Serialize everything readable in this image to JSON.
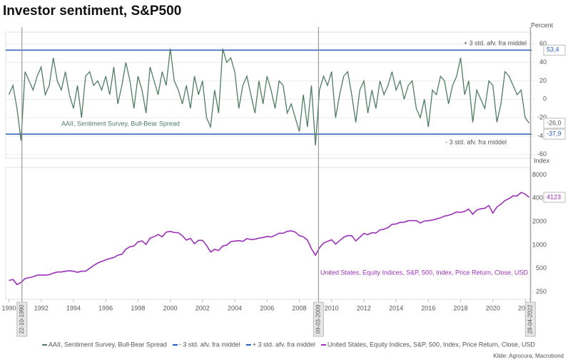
{
  "title": "Investor sentiment, S&P500",
  "source": "Kilde: Agrocura, Macrobond",
  "events": [
    {
      "label": "22-10-1990"
    },
    {
      "label": "09-03-2009"
    },
    {
      "label": "28-04-2022"
    }
  ],
  "chart_data": [
    {
      "type": "line",
      "ylabel": "Percent",
      "ylim": [
        -64,
        73
      ],
      "yticks": [
        -60,
        -40,
        -20,
        0,
        20,
        40,
        60
      ],
      "grid": true,
      "x": [
        1990,
        1990.25,
        1990.5,
        1990.75,
        1991,
        1991.25,
        1991.5,
        1991.75,
        1992,
        1992.25,
        1992.5,
        1992.75,
        1993,
        1993.25,
        1993.5,
        1993.75,
        1994,
        1994.25,
        1994.5,
        1994.75,
        1995,
        1995.25,
        1995.5,
        1995.75,
        1996,
        1996.25,
        1996.5,
        1996.75,
        1997,
        1997.25,
        1997.5,
        1997.75,
        1998,
        1998.25,
        1998.5,
        1998.75,
        1999,
        1999.25,
        1999.5,
        1999.75,
        2000,
        2000.25,
        2000.5,
        2000.75,
        2001,
        2001.25,
        2001.5,
        2001.75,
        2002,
        2002.25,
        2002.5,
        2002.75,
        2003,
        2003.25,
        2003.5,
        2003.75,
        2004,
        2004.25,
        2004.5,
        2004.75,
        2005,
        2005.25,
        2005.5,
        2005.75,
        2006,
        2006.25,
        2006.5,
        2006.75,
        2007,
        2007.25,
        2007.5,
        2007.75,
        2008,
        2008.25,
        2008.5,
        2008.75,
        2009,
        2009.25,
        2009.5,
        2009.75,
        2010,
        2010.25,
        2010.5,
        2010.75,
        2011,
        2011.25,
        2011.5,
        2011.75,
        2012,
        2012.25,
        2012.5,
        2012.75,
        2013,
        2013.25,
        2013.5,
        2013.75,
        2014,
        2014.25,
        2014.5,
        2014.75,
        2015,
        2015.25,
        2015.5,
        2015.75,
        2016,
        2016.25,
        2016.5,
        2016.75,
        2017,
        2017.25,
        2017.5,
        2017.75,
        2018,
        2018.25,
        2018.5,
        2018.75,
        2019,
        2019.25,
        2019.5,
        2019.75,
        2020,
        2020.25,
        2020.5,
        2020.75,
        2021,
        2021.25,
        2021.5,
        2021.75,
        2022,
        2022.25
      ],
      "series": [
        {
          "name": "AAII, Sentiment Survey, Bull-Bear Spread",
          "color": "#4e7d63",
          "last_value_label": "-26,0",
          "values": [
            5,
            15,
            -10,
            -45,
            30,
            20,
            10,
            25,
            35,
            5,
            15,
            45,
            20,
            10,
            30,
            5,
            -10,
            15,
            -20,
            25,
            30,
            15,
            20,
            10,
            25,
            5,
            35,
            -5,
            15,
            40,
            20,
            -10,
            25,
            10,
            -15,
            35,
            20,
            5,
            30,
            15,
            55,
            20,
            10,
            -5,
            15,
            -10,
            25,
            5,
            20,
            -20,
            -30,
            10,
            -15,
            55,
            40,
            45,
            30,
            -10,
            15,
            25,
            5,
            -15,
            20,
            -5,
            25,
            10,
            -10,
            20,
            15,
            -15,
            -5,
            -20,
            -35,
            5,
            -30,
            15,
            -50,
            10,
            25,
            15,
            30,
            -20,
            5,
            25,
            30,
            5,
            -25,
            10,
            20,
            -15,
            10,
            -10,
            20,
            5,
            15,
            30,
            10,
            20,
            0,
            15,
            20,
            -10,
            -20,
            0,
            -30,
            10,
            5,
            25,
            20,
            -5,
            15,
            25,
            45,
            5,
            20,
            -25,
            10,
            0,
            -10,
            20,
            15,
            -25,
            -5,
            30,
            25,
            15,
            5,
            10,
            -20,
            -26
          ]
        }
      ],
      "hlines": [
        {
          "name": "- 3 std. afv. fra middel",
          "value": -37.9,
          "value_label": "-37,9",
          "color": "#2a5bb8"
        },
        {
          "name": "+ 3 std. afv. fra middel",
          "value": 53.4,
          "value_label": "53,4",
          "color": "#2a5bb8"
        }
      ]
    },
    {
      "type": "line",
      "ylabel": "Index",
      "log_scale": true,
      "ylim": [
        200,
        10000
      ],
      "yticks": [
        250,
        500,
        1000,
        2000,
        4000,
        8000
      ],
      "xlim": [
        1989.8,
        2022.4
      ],
      "xticks": [
        1990,
        1992,
        1994,
        1996,
        1998,
        2000,
        2002,
        2004,
        2006,
        2008,
        2010,
        2012,
        2014,
        2016,
        2018,
        2020,
        2022
      ],
      "x": [
        1990,
        1990.25,
        1990.5,
        1990.75,
        1991,
        1991.25,
        1991.5,
        1991.75,
        1992,
        1992.25,
        1992.5,
        1992.75,
        1993,
        1993.25,
        1993.5,
        1993.75,
        1994,
        1994.25,
        1994.5,
        1994.75,
        1995,
        1995.25,
        1995.5,
        1995.75,
        1996,
        1996.25,
        1996.5,
        1996.75,
        1997,
        1997.25,
        1997.5,
        1997.75,
        1998,
        1998.25,
        1998.5,
        1998.75,
        1999,
        1999.25,
        1999.5,
        1999.75,
        2000,
        2000.25,
        2000.5,
        2000.75,
        2001,
        2001.25,
        2001.5,
        2001.75,
        2002,
        2002.25,
        2002.5,
        2002.75,
        2003,
        2003.25,
        2003.5,
        2003.75,
        2004,
        2004.25,
        2004.5,
        2004.75,
        2005,
        2005.25,
        2005.5,
        2005.75,
        2006,
        2006.25,
        2006.5,
        2006.75,
        2007,
        2007.25,
        2007.5,
        2007.75,
        2008,
        2008.25,
        2008.5,
        2008.75,
        2009,
        2009.25,
        2009.5,
        2009.75,
        2010,
        2010.25,
        2010.5,
        2010.75,
        2011,
        2011.25,
        2011.5,
        2011.75,
        2012,
        2012.25,
        2012.5,
        2012.75,
        2013,
        2013.25,
        2013.5,
        2013.75,
        2014,
        2014.25,
        2014.5,
        2014.75,
        2015,
        2015.25,
        2015.5,
        2015.75,
        2016,
        2016.25,
        2016.5,
        2016.75,
        2017,
        2017.25,
        2017.5,
        2017.75,
        2018,
        2018.25,
        2018.5,
        2018.75,
        2019,
        2019.25,
        2019.5,
        2019.75,
        2020,
        2020.25,
        2020.5,
        2020.75,
        2021,
        2021.25,
        2021.5,
        2021.75,
        2022,
        2022.25
      ],
      "series": [
        {
          "name": "United States, Equity Indices, S&P, 500, Index, Price Return, Close, USD",
          "color": "#9b30b8",
          "last_value_label": "4123",
          "values": [
            350,
            360,
            310,
            330,
            370,
            380,
            390,
            410,
            410,
            410,
            415,
            435,
            450,
            450,
            460,
            465,
            460,
            445,
            460,
            460,
            500,
            545,
            585,
            615,
            645,
            670,
            690,
            740,
            760,
            885,
            950,
            970,
            1100,
            1130,
            1020,
            1230,
            1280,
            1370,
            1280,
            1470,
            1500,
            1450,
            1440,
            1320,
            1160,
            1220,
            1040,
            1150,
            1150,
            990,
            815,
            880,
            850,
            975,
            995,
            1110,
            1125,
            1140,
            1115,
            1210,
            1180,
            1190,
            1230,
            1250,
            1290,
            1270,
            1335,
            1420,
            1420,
            1500,
            1525,
            1470,
            1320,
            1280,
            1160,
            900,
            740,
            920,
            1060,
            1115,
            1170,
            1030,
            1140,
            1260,
            1325,
            1320,
            1130,
            1260,
            1410,
            1360,
            1440,
            1425,
            1570,
            1600,
            1680,
            1850,
            1870,
            1960,
            1970,
            2060,
            2070,
            2060,
            1920,
            2045,
            2060,
            2100,
            2170,
            2240,
            2360,
            2420,
            2520,
            2670,
            2640,
            2720,
            2910,
            2500,
            2830,
            2940,
            2980,
            3230,
            2580,
            3100,
            3360,
            3750,
            3970,
            4300,
            4300,
            4770,
            4530,
            4123
          ]
        }
      ]
    }
  ]
}
